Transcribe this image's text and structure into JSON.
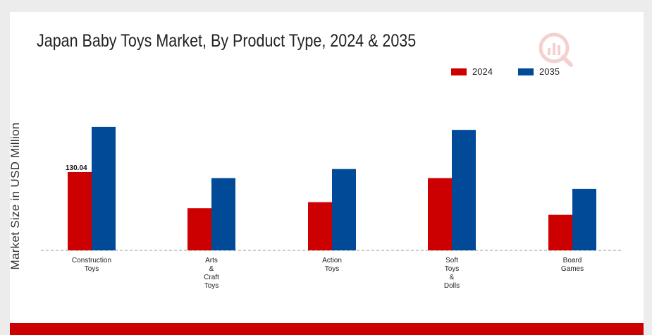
{
  "chart_data": {
    "type": "bar",
    "title": "Japan Baby Toys Market, By Product Type, 2024 & 2035",
    "ylabel": "Market Size in USD Million",
    "xlabel": "",
    "categories": [
      [
        "Construction",
        "Toys"
      ],
      [
        "Arts",
        "&",
        "Craft",
        "Toys"
      ],
      [
        "Action",
        "Toys"
      ],
      [
        "Soft",
        "Toys",
        "&",
        "Dolls"
      ],
      [
        "Board",
        "Games"
      ]
    ],
    "series": [
      {
        "name": "2024",
        "color": "#cc0000",
        "values": [
          130.04,
          70.0,
          80.0,
          120.0,
          59.0
        ]
      },
      {
        "name": "2035",
        "color": "#004a97",
        "values": [
          205.0,
          120.0,
          135.0,
          200.0,
          102.0
        ]
      }
    ],
    "data_labels": [
      {
        "series": 0,
        "index": 0,
        "text": "130.04"
      }
    ],
    "ylim": [
      0,
      240
    ],
    "grid": false,
    "legend_position": "top-right"
  },
  "logo": {
    "icon": "market-research-logo-icon"
  }
}
